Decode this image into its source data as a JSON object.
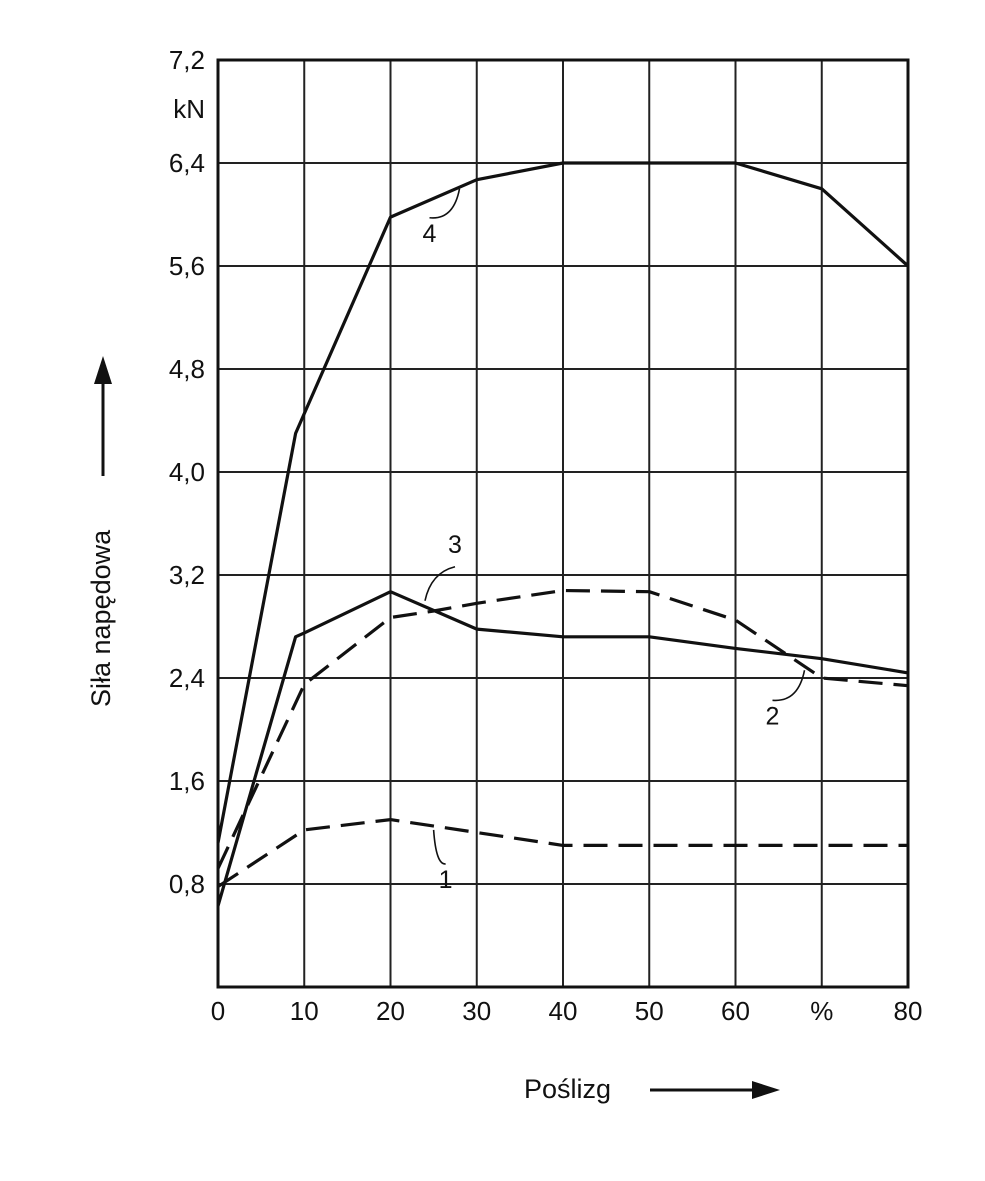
{
  "chart_data": {
    "type": "line",
    "xlabel": "Poślizg",
    "ylabel": "Siła napędowa",
    "y_unit": "kN",
    "x_unit": "%",
    "xlim": [
      0,
      80
    ],
    "ylim": [
      0,
      7.2
    ],
    "x_ticks": [
      "0",
      "10",
      "20",
      "30",
      "40",
      "50",
      "60",
      "%",
      "80"
    ],
    "y_ticks": [
      "0,8",
      "1,6",
      "2,4",
      "3,2",
      "4,0",
      "4,8",
      "5,6",
      "6,4",
      "7,2"
    ],
    "grid": true,
    "series": [
      {
        "name": "1",
        "style": "dashed",
        "x": [
          0,
          10,
          20,
          30,
          40,
          50,
          60,
          70,
          80
        ],
        "y": [
          0.78,
          1.22,
          1.3,
          1.2,
          1.1,
          1.1,
          1.1,
          1.1,
          1.1
        ]
      },
      {
        "name": "2",
        "style": "dashed",
        "x": [
          0,
          10,
          20,
          25,
          30,
          40,
          50,
          60,
          70,
          80
        ],
        "y": [
          0.92,
          2.35,
          2.87,
          2.92,
          2.98,
          3.08,
          3.07,
          2.85,
          2.4,
          2.34
        ]
      },
      {
        "name": "3",
        "style": "solid",
        "x": [
          0,
          9,
          10,
          20,
          30,
          40,
          50,
          60,
          70,
          80
        ],
        "y": [
          0.63,
          2.72,
          2.75,
          3.07,
          2.78,
          2.72,
          2.72,
          2.63,
          2.55,
          2.44
        ]
      },
      {
        "name": "4",
        "style": "solid",
        "x": [
          0,
          9,
          20,
          30,
          40,
          50,
          60,
          70,
          80
        ],
        "y": [
          1.12,
          4.3,
          5.98,
          6.27,
          6.4,
          6.4,
          6.4,
          6.2,
          5.6
        ]
      }
    ]
  }
}
